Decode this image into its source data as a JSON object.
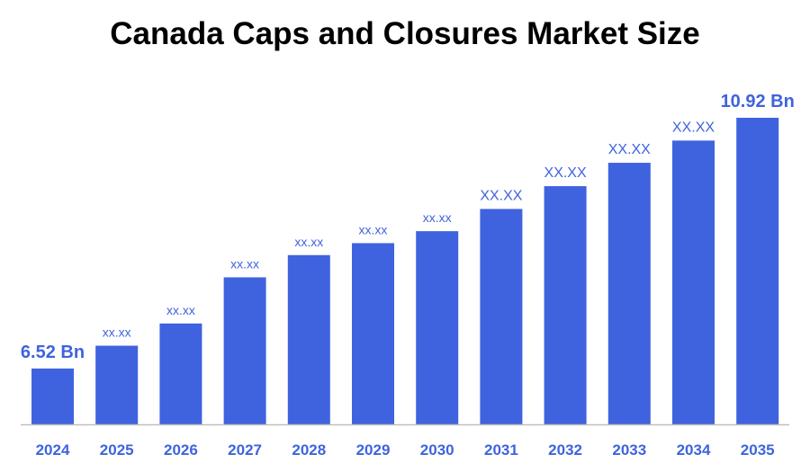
{
  "chart_data": {
    "type": "bar",
    "title": "Canada Caps and Closures Market Size",
    "xlabel": "",
    "ylabel": "",
    "categories": [
      "2024",
      "2025",
      "2026",
      "2027",
      "2028",
      "2029",
      "2030",
      "2031",
      "2032",
      "2033",
      "2034",
      "2035"
    ],
    "values": [
      6.52,
      6.92,
      7.31,
      8.12,
      8.51,
      8.72,
      8.93,
      9.32,
      9.72,
      10.13,
      10.52,
      10.92
    ],
    "data_labels": [
      "6.52 Bn",
      "xx.xx",
      "xx.xx",
      "xx.xx",
      "xx.xx",
      "xx.xx",
      "xx.xx",
      "XX.XX",
      "XX.XX",
      "XX.XX",
      "XX.XX",
      "10.92 Bn"
    ],
    "ylim": [
      5.54,
      11.0
    ],
    "grid": false,
    "legend": "none",
    "colors": {
      "bar": "#3F63DE",
      "label": "#3F63DE",
      "axis": "#BFBFBF"
    }
  }
}
